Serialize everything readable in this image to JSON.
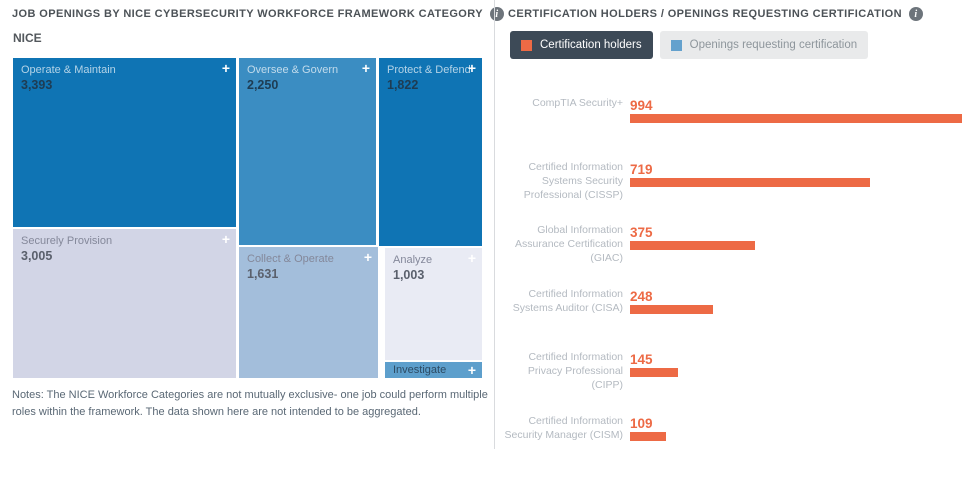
{
  "icons": {
    "plus": "+",
    "info": "i"
  },
  "left_panel": {
    "title": "JOB OPENINGS BY NICE CYBERSECURITY WORKFRAME FRAMEWORK CATEGORY",
    "group_label": "NICE",
    "tiles": [
      {
        "name": "Operate & Maintain",
        "value_display": "3,393",
        "value": 3393,
        "color": "#0f74b4"
      },
      {
        "name": "Oversee & Govern",
        "value_display": "2,250",
        "value": 2250,
        "color": "#3b8dc2"
      },
      {
        "name": "Protect & Defend",
        "value_display": "1,822",
        "value": 1822,
        "color": "#0f74b4"
      },
      {
        "name": "Securely Provision",
        "value_display": "3,005",
        "value": 3005,
        "color": "#d2d5e6"
      },
      {
        "name": "Collect & Operate",
        "value_display": "1,631",
        "value": 1631,
        "color": "#a3bedb"
      },
      {
        "name": "Analyze",
        "value_display": "1,003",
        "value": 1003,
        "color": "#e9ebf4"
      },
      {
        "name": "Investigate",
        "value_display": "",
        "value": null,
        "color": "#5d9fcc"
      }
    ],
    "notes": "Notes: The NICE Workforce Categories are not mutually exclusive- one job could perform multiple roles within the framework. The data shown here are not intended to be aggregated."
  },
  "right_panel": {
    "title": "CERTIFICATION HOLDERS / OPENINGS REQUESTING CERTIFICATION",
    "accent_color": "#ed6a45",
    "legend": [
      {
        "label": "Certification holders",
        "swatch_color": "#ed6a45",
        "active": true
      },
      {
        "label": "Openings requesting certification",
        "swatch_color": "#64a1cd",
        "active": false
      }
    ],
    "bars": [
      {
        "label": "CompTIA Security+",
        "value": 994
      },
      {
        "label": "Certified Information\nSystems Security\nProfessional (CISSP)",
        "value": 719
      },
      {
        "label": "Global Information\nAssurance Certification\n(GIAC)",
        "value": 375
      },
      {
        "label": "Certified Information\nSystems Auditor (CISA)",
        "value": 248
      },
      {
        "label": "Certified Information\nPrivacy Professional\n(CIPP)",
        "value": 145
      },
      {
        "label": "Certified Information\nSecurity Manager (CISM)",
        "value": 109
      }
    ]
  },
  "chart_data": [
    {
      "type": "treemap",
      "title": "JOB OPENINGS BY NICE CYBERSECURITY WORKFORCE FRAMEWORK CATEGORY",
      "group": "NICE",
      "categories": [
        "Operate & Maintain",
        "Oversee & Govern",
        "Protect & Defend",
        "Securely Provision",
        "Collect & Operate",
        "Analyze",
        "Investigate"
      ],
      "values": [
        3393,
        2250,
        1822,
        3005,
        1631,
        1003,
        null
      ],
      "colors": [
        "#0f74b4",
        "#3b8dc2",
        "#0f74b4",
        "#d2d5e6",
        "#a3bedb",
        "#e9ebf4",
        "#5d9fcc"
      ]
    },
    {
      "type": "bar",
      "orientation": "horizontal",
      "title": "CERTIFICATION HOLDERS / OPENINGS REQUESTING CERTIFICATION",
      "categories": [
        "CompTIA Security+",
        "Certified Information Systems Security Professional (CISSP)",
        "Global Information Assurance Certification (GIAC)",
        "Certified Information Systems Auditor (CISA)",
        "Certified Information Privacy Professional (CIPP)",
        "Certified Information Security Manager (CISM)"
      ],
      "series": [
        {
          "name": "Certification holders",
          "color": "#ed6a45",
          "values": [
            994,
            719,
            375,
            248,
            145,
            109
          ]
        }
      ],
      "legend_entries": [
        "Certification holders",
        "Openings requesting certification"
      ],
      "legend_position": "top",
      "data_labels": true,
      "grid": false,
      "xlim": [
        0,
        1040
      ]
    }
  ]
}
